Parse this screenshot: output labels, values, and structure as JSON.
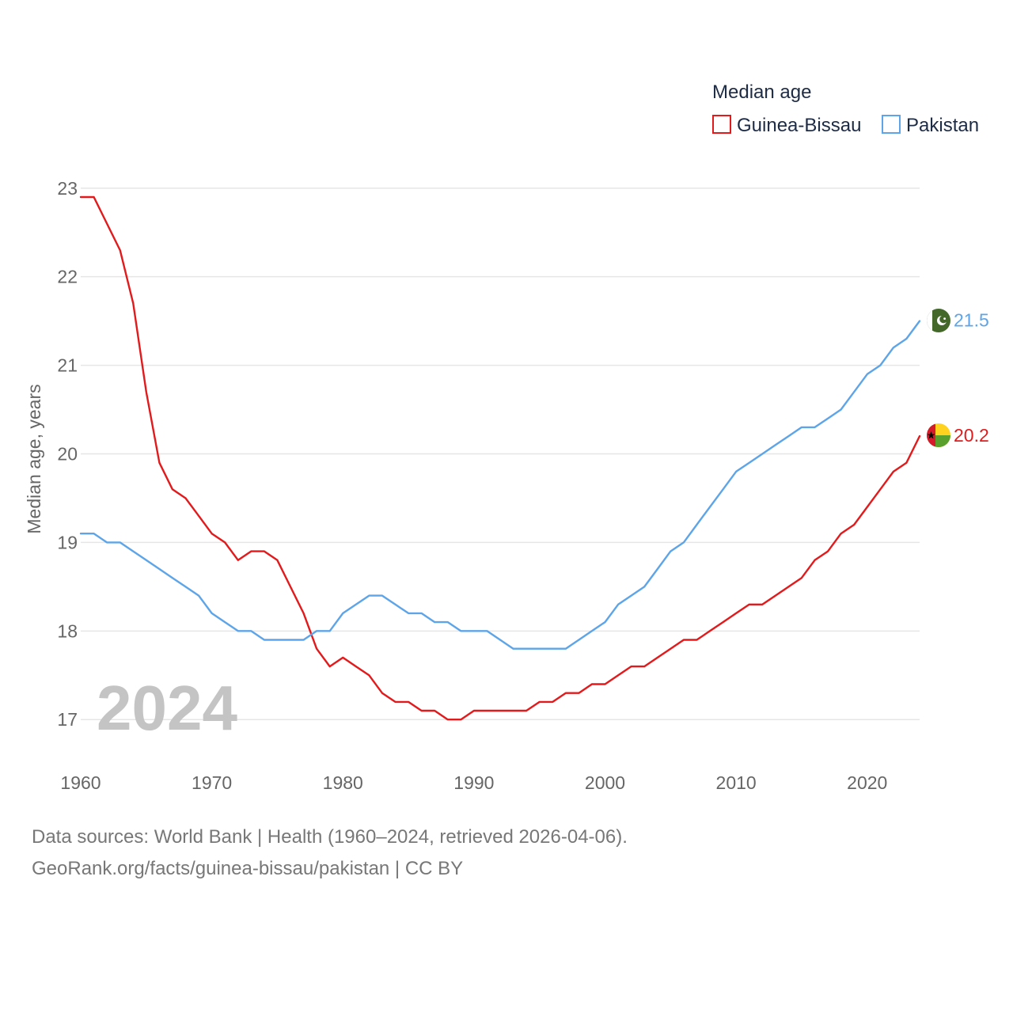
{
  "chart_data": {
    "type": "line",
    "legend_title": "Median age",
    "ylabel": "Median age, years",
    "xlabel": "",
    "year_watermark": "2024",
    "xlim": [
      1960,
      2024
    ],
    "ylim": [
      16.6,
      23.4
    ],
    "x_ticks": [
      1960,
      1970,
      1980,
      1990,
      2000,
      2010,
      2020
    ],
    "y_ticks": [
      17,
      18,
      19,
      20,
      21,
      22,
      23
    ],
    "legend_position": "top-right",
    "grid": true,
    "x": [
      1960,
      1961,
      1962,
      1963,
      1964,
      1965,
      1966,
      1967,
      1968,
      1969,
      1970,
      1971,
      1972,
      1973,
      1974,
      1975,
      1976,
      1977,
      1978,
      1979,
      1980,
      1981,
      1982,
      1983,
      1984,
      1985,
      1986,
      1987,
      1988,
      1989,
      1990,
      1991,
      1992,
      1993,
      1994,
      1995,
      1996,
      1997,
      1998,
      1999,
      2000,
      2001,
      2002,
      2003,
      2004,
      2005,
      2006,
      2007,
      2008,
      2009,
      2010,
      2011,
      2012,
      2013,
      2014,
      2015,
      2016,
      2017,
      2018,
      2019,
      2020,
      2021,
      2022,
      2023,
      2024
    ],
    "series": [
      {
        "name": "Guinea-Bissau",
        "color": "#e31a1c",
        "end_label": "20.2",
        "values": [
          22.9,
          22.9,
          22.6,
          22.3,
          21.7,
          20.7,
          19.9,
          19.6,
          19.5,
          19.3,
          19.1,
          19.0,
          18.8,
          18.9,
          18.9,
          18.8,
          18.5,
          18.2,
          17.8,
          17.6,
          17.7,
          17.6,
          17.5,
          17.3,
          17.2,
          17.2,
          17.1,
          17.1,
          17.0,
          17.0,
          17.1,
          17.1,
          17.1,
          17.1,
          17.1,
          17.2,
          17.2,
          17.3,
          17.3,
          17.4,
          17.4,
          17.5,
          17.6,
          17.6,
          17.7,
          17.8,
          17.9,
          17.9,
          18.0,
          18.1,
          18.2,
          18.3,
          18.3,
          18.4,
          18.5,
          18.6,
          18.8,
          18.9,
          19.1,
          19.2,
          19.4,
          19.6,
          19.8,
          19.9,
          20.2
        ]
      },
      {
        "name": "Pakistan",
        "color": "#5da5e8",
        "end_label": "21.5",
        "values": [
          19.1,
          19.1,
          19.0,
          19.0,
          18.9,
          18.8,
          18.7,
          18.6,
          18.5,
          18.4,
          18.2,
          18.1,
          18.0,
          18.0,
          17.9,
          17.9,
          17.9,
          17.9,
          18.0,
          18.0,
          18.2,
          18.3,
          18.4,
          18.4,
          18.3,
          18.2,
          18.2,
          18.1,
          18.1,
          18.0,
          18.0,
          18.0,
          17.9,
          17.8,
          17.8,
          17.8,
          17.8,
          17.8,
          17.9,
          18.0,
          18.1,
          18.3,
          18.4,
          18.5,
          18.7,
          18.9,
          19.0,
          19.2,
          19.4,
          19.6,
          19.8,
          19.9,
          20.0,
          20.1,
          20.2,
          20.3,
          20.3,
          20.4,
          20.5,
          20.7,
          20.9,
          21.0,
          21.2,
          21.3,
          21.5
        ]
      }
    ]
  },
  "footer": {
    "sources": "Data sources: World Bank | Health (1960–2024, retrieved 2026-04-06).",
    "credit": "GeoRank.org/facts/guinea-bissau/pakistan | CC BY"
  }
}
